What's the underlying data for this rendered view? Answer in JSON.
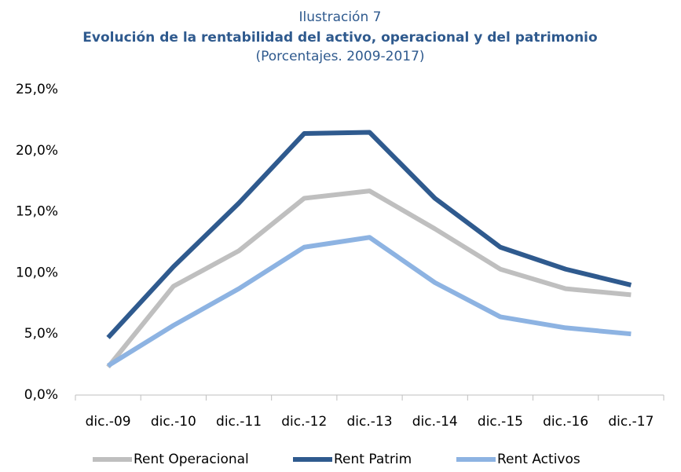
{
  "chart_data": {
    "type": "line",
    "label": "Ilustración 7",
    "title": "Evolución de la rentabilidad del activo, operacional y del patrimonio",
    "subtitle": "(Porcentajes. 2009-2017)",
    "categories": [
      "dic.-09",
      "dic.-10",
      "dic.-11",
      "dic.-12",
      "dic.-13",
      "dic.-14",
      "dic.-15",
      "dic.-16",
      "dic.-17"
    ],
    "series": [
      {
        "name": "Rent Operacional",
        "color": "#bfbfbf",
        "values": [
          2.3,
          8.9,
          11.8,
          16.1,
          16.7,
          13.6,
          10.3,
          8.7,
          8.2
        ]
      },
      {
        "name": "Rent Patrim",
        "color": "#2f5a8e",
        "values": [
          4.7,
          10.5,
          15.7,
          21.4,
          21.5,
          16.1,
          12.1,
          10.3,
          9.0
        ]
      },
      {
        "name": "Rent Activos",
        "color": "#8db3e2",
        "values": [
          2.4,
          5.7,
          8.7,
          12.1,
          12.9,
          9.2,
          6.4,
          5.5,
          5.0
        ]
      }
    ],
    "ylim": [
      0,
      25
    ],
    "yticks": [
      {
        "value": 0,
        "label": "0,0%"
      },
      {
        "value": 5,
        "label": "5,0%"
      },
      {
        "value": 10,
        "label": "10,0%"
      },
      {
        "value": 15,
        "label": "15,0%"
      },
      {
        "value": 20,
        "label": "20,0%"
      },
      {
        "value": 25,
        "label": "25,0%"
      }
    ],
    "grid": false,
    "legend": "bottom"
  }
}
